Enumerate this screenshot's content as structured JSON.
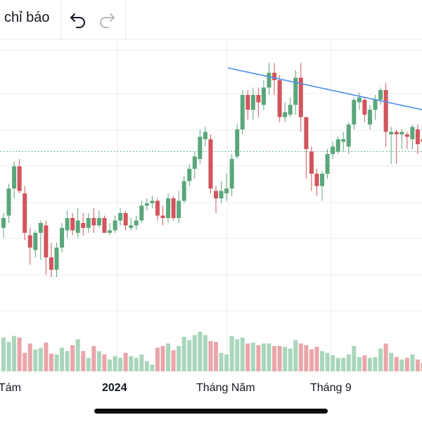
{
  "toolbar": {
    "indicators_label": "chỉ báo",
    "undo_icon": "undo-arrow-icon",
    "redo_icon": "redo-arrow-icon"
  },
  "colors": {
    "up": "#5aa67b",
    "down": "#d2545c",
    "vol_up": "#a9d6bb",
    "vol_down": "#e9a5a9",
    "trendline": "#4f8ee8",
    "grid": "#ececec",
    "last_price": "#3f9e6f"
  },
  "chart_data": {
    "type": "candlestick",
    "x_tick_labels": [
      "Tám",
      "2024",
      "Tháng Năm",
      "Tháng 9"
    ],
    "note": "price values in normalized chart units (0 = bottom, 100 = top of price pane); volume normalized 0-100",
    "last_price_level": 63,
    "trendline": {
      "from": [
        0.54,
        97
      ],
      "to": [
        1.0,
        80
      ]
    },
    "candles": [
      [
        32,
        36,
        28,
        38,
        40
      ],
      [
        37,
        48,
        34,
        50,
        35
      ],
      [
        48,
        57,
        44,
        59,
        42
      ],
      [
        57,
        47,
        46,
        60,
        40
      ],
      [
        46,
        30,
        27,
        49,
        22
      ],
      [
        29,
        24,
        17,
        32,
        33
      ],
      [
        23,
        30,
        20,
        31,
        26
      ],
      [
        30,
        34,
        19,
        35,
        28
      ],
      [
        33,
        20,
        13,
        35,
        34
      ],
      [
        20,
        15,
        12,
        26,
        21
      ],
      [
        15,
        24,
        12,
        26,
        20
      ],
      [
        24,
        32,
        22,
        34,
        28
      ],
      [
        31,
        36,
        28,
        39,
        24
      ],
      [
        36,
        31,
        29,
        38,
        31
      ],
      [
        30,
        35,
        28,
        40,
        38
      ],
      [
        34,
        32,
        29,
        38,
        24
      ],
      [
        32,
        36,
        30,
        38,
        16
      ],
      [
        36,
        33,
        30,
        40,
        30
      ],
      [
        33,
        36,
        32,
        39,
        24
      ],
      [
        36,
        30,
        30,
        37,
        20
      ],
      [
        30,
        31,
        29,
        34,
        14
      ],
      [
        31,
        35,
        30,
        37,
        18
      ],
      [
        35,
        38,
        33,
        40,
        16
      ],
      [
        38,
        33,
        31,
        39,
        22
      ],
      [
        32,
        33,
        31,
        36,
        18
      ],
      [
        33,
        35,
        31,
        37,
        16
      ],
      [
        35,
        41,
        34,
        43,
        20
      ],
      [
        41,
        42,
        39,
        44,
        12
      ],
      [
        42,
        43,
        40,
        45,
        8
      ],
      [
        43,
        37,
        35,
        44,
        28
      ],
      [
        37,
        36,
        33,
        41,
        30
      ],
      [
        36,
        44,
        34,
        46,
        33
      ],
      [
        44,
        36,
        35,
        45,
        25
      ],
      [
        36,
        43,
        34,
        47,
        30
      ],
      [
        43,
        51,
        42,
        53,
        41
      ],
      [
        51,
        56,
        49,
        58,
        37
      ],
      [
        56,
        61,
        52,
        63,
        43
      ],
      [
        60,
        69,
        58,
        72,
        47
      ],
      [
        68,
        71,
        65,
        73,
        43
      ],
      [
        68,
        48,
        46,
        70,
        36
      ],
      [
        47,
        44,
        38,
        49,
        35
      ],
      [
        44,
        47,
        42,
        51,
        22
      ],
      [
        46,
        48,
        43,
        54,
        20
      ],
      [
        48,
        60,
        45,
        62,
        42
      ],
      [
        61,
        72,
        60,
        74,
        38
      ],
      [
        72,
        86,
        70,
        88,
        40
      ],
      [
        86,
        80,
        76,
        88,
        33
      ],
      [
        80,
        86,
        76,
        89,
        34
      ],
      [
        86,
        83,
        77,
        89,
        31
      ],
      [
        82,
        89,
        80,
        92,
        33
      ],
      [
        89,
        95,
        86,
        99,
        33
      ],
      [
        95,
        92,
        86,
        99,
        30
      ],
      [
        92,
        77,
        75,
        94,
        30
      ],
      [
        77,
        79,
        75,
        83,
        29
      ],
      [
        78,
        82,
        77,
        85,
        27
      ],
      [
        82,
        93,
        78,
        96,
        37
      ],
      [
        93,
        77,
        71,
        99,
        33
      ],
      [
        77,
        64,
        52,
        77,
        31
      ],
      [
        63,
        54,
        47,
        65,
        26
      ],
      [
        54,
        49,
        45,
        56,
        29
      ],
      [
        49,
        54,
        43,
        55,
        24
      ],
      [
        54,
        62,
        52,
        64,
        22
      ],
      [
        62,
        65,
        60,
        67,
        19
      ],
      [
        63,
        68,
        62,
        69,
        16
      ],
      [
        67,
        68,
        63,
        71,
        16
      ],
      [
        65,
        74,
        62,
        75,
        20
      ],
      [
        74,
        84,
        72,
        85,
        30
      ],
      [
        83,
        85,
        80,
        87,
        17
      ],
      [
        84,
        78,
        75,
        85,
        19
      ],
      [
        74,
        80,
        72,
        82,
        16
      ],
      [
        80,
        84,
        76,
        86,
        17
      ],
      [
        84,
        88,
        82,
        89,
        27
      ],
      [
        88,
        71,
        65,
        91,
        33
      ],
      [
        70,
        71,
        58,
        73,
        22
      ],
      [
        71,
        70,
        58,
        72,
        17
      ],
      [
        70,
        71,
        64,
        72,
        14
      ],
      [
        70,
        69,
        64,
        71,
        16
      ],
      [
        68,
        73,
        64,
        74,
        20
      ],
      [
        72,
        66,
        62,
        74,
        14
      ],
      [
        68,
        67,
        62,
        69,
        10
      ]
    ]
  }
}
